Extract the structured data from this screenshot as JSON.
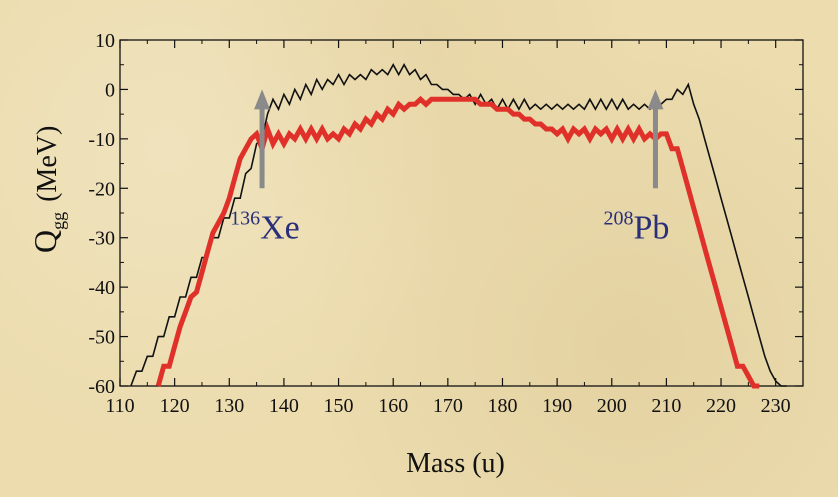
{
  "chart_data": {
    "type": "line",
    "title": "",
    "xlabel": "Mass (u)",
    "ylabel_main": "Q",
    "ylabel_sub": "gg",
    "ylabel_unit": "(MeV)",
    "xlim": [
      110,
      235
    ],
    "ylim": [
      -60,
      10
    ],
    "x_ticks": [
      110,
      120,
      130,
      140,
      150,
      160,
      170,
      180,
      190,
      200,
      210,
      220,
      230
    ],
    "y_ticks": [
      10,
      0,
      -10,
      -20,
      -30,
      -40,
      -50,
      -60
    ],
    "grid": false,
    "series": [
      {
        "color": "#111111",
        "x": [
          112,
          113,
          114,
          115,
          116,
          117,
          118,
          119,
          120,
          121,
          122,
          123,
          124,
          125,
          126,
          127,
          128,
          129,
          130,
          131,
          132,
          133,
          134,
          135,
          136,
          137,
          138,
          139,
          140,
          141,
          142,
          143,
          144,
          145,
          146,
          147,
          148,
          149,
          150,
          151,
          152,
          153,
          154,
          155,
          156,
          157,
          158,
          159,
          160,
          161,
          162,
          163,
          164,
          165,
          166,
          167,
          168,
          169,
          170,
          171,
          172,
          173,
          174,
          175,
          176,
          177,
          178,
          179,
          180,
          181,
          182,
          183,
          184,
          185,
          186,
          187,
          188,
          189,
          190,
          191,
          192,
          193,
          194,
          195,
          196,
          197,
          198,
          199,
          200,
          201,
          202,
          203,
          204,
          205,
          206,
          207,
          208,
          209,
          210,
          211,
          212,
          213,
          214,
          215,
          216,
          217,
          218,
          219,
          220,
          221,
          222,
          223,
          224,
          225,
          226,
          227,
          228,
          229,
          230,
          231,
          232
        ],
        "values": [
          -60,
          -57,
          -57,
          -54,
          -54,
          -50,
          -50,
          -46,
          -46,
          -42,
          -42,
          -38,
          -38,
          -34,
          -34,
          -30,
          -30,
          -26,
          -26,
          -22,
          -22,
          -17,
          -16,
          -11,
          -10,
          -5,
          -2,
          -4,
          -1,
          -3,
          0,
          -2,
          1,
          -1,
          2,
          0,
          2,
          1,
          3,
          1,
          3,
          2,
          3,
          2,
          4,
          3,
          4,
          3,
          5,
          3,
          5,
          3,
          4,
          2,
          3,
          1,
          1,
          0,
          0,
          -1,
          -1,
          -2,
          -1,
          -3,
          -1,
          -3,
          -2,
          -4,
          -2,
          -4,
          -2,
          -4,
          -2,
          -4,
          -3,
          -4,
          -3,
          -4,
          -3,
          -4,
          -3,
          -4,
          -3,
          -4,
          -2,
          -4,
          -2,
          -4,
          -2,
          -4,
          -2,
          -4,
          -3,
          -4,
          -3,
          -4,
          -3,
          -3,
          -2,
          -2,
          0,
          -1,
          1,
          -3,
          -6,
          -10,
          -14,
          -18,
          -22,
          -26,
          -30,
          -34,
          -38,
          -42,
          -46,
          -50,
          -54,
          -57,
          -59,
          -60,
          -60
        ],
        "note_hidden": ""
      },
      {
        "color": "#e0302a",
        "x": [
          117,
          118,
          119,
          120,
          121,
          122,
          123,
          124,
          125,
          126,
          127,
          128,
          129,
          130,
          131,
          132,
          133,
          134,
          135,
          136,
          137,
          138,
          139,
          140,
          141,
          142,
          143,
          144,
          145,
          146,
          147,
          148,
          149,
          150,
          151,
          152,
          153,
          154,
          155,
          156,
          157,
          158,
          159,
          160,
          161,
          162,
          163,
          164,
          165,
          166,
          167,
          168,
          169,
          170,
          171,
          172,
          173,
          174,
          175,
          176,
          177,
          178,
          179,
          180,
          181,
          182,
          183,
          184,
          185,
          186,
          187,
          188,
          189,
          190,
          191,
          192,
          193,
          194,
          195,
          196,
          197,
          198,
          199,
          200,
          201,
          202,
          203,
          204,
          205,
          206,
          207,
          208,
          209,
          210,
          211,
          212,
          213,
          214,
          215,
          216,
          217,
          218,
          219,
          220,
          221,
          222,
          223,
          224,
          225,
          226,
          227
        ],
        "values": [
          -60,
          -56,
          -56,
          -52,
          -48,
          -45,
          -42,
          -41,
          -37,
          -33,
          -29,
          -27,
          -25,
          -22,
          -18,
          -14,
          -12,
          -10,
          -9,
          -12,
          -8,
          -11,
          -9,
          -11,
          -9,
          -10,
          -8,
          -10,
          -8,
          -10,
          -8,
          -10,
          -9,
          -10,
          -8,
          -9,
          -7,
          -8,
          -6,
          -7,
          -5,
          -6,
          -4,
          -5,
          -3,
          -4,
          -3,
          -3,
          -2,
          -3,
          -2,
          -2,
          -2,
          -2,
          -2,
          -2,
          -2,
          -2,
          -2,
          -3,
          -3,
          -3,
          -4,
          -4,
          -4,
          -5,
          -5,
          -6,
          -6,
          -7,
          -7,
          -8,
          -8,
          -9,
          -8,
          -10,
          -8,
          -9,
          -8,
          -10,
          -8,
          -9,
          -8,
          -10,
          -8,
          -10,
          -8,
          -10,
          -8,
          -10,
          -9,
          -10,
          -9,
          -9,
          -12,
          -12,
          -16,
          -20,
          -24,
          -28,
          -32,
          -36,
          -40,
          -44,
          -48,
          -52,
          -56,
          -56,
          -58,
          -60,
          -60
        ]
      }
    ],
    "annotations": [
      {
        "label_sup": "136",
        "label_main": "Xe",
        "arrow_x": 136,
        "arrow_y_top": 0,
        "arrow_y_bottom": -20
      },
      {
        "label_sup": "208",
        "label_main": "Pb",
        "arrow_x": 208,
        "arrow_y_top": 0,
        "arrow_y_bottom": -20
      }
    ],
    "arrow_color": "#8a8a8a"
  }
}
